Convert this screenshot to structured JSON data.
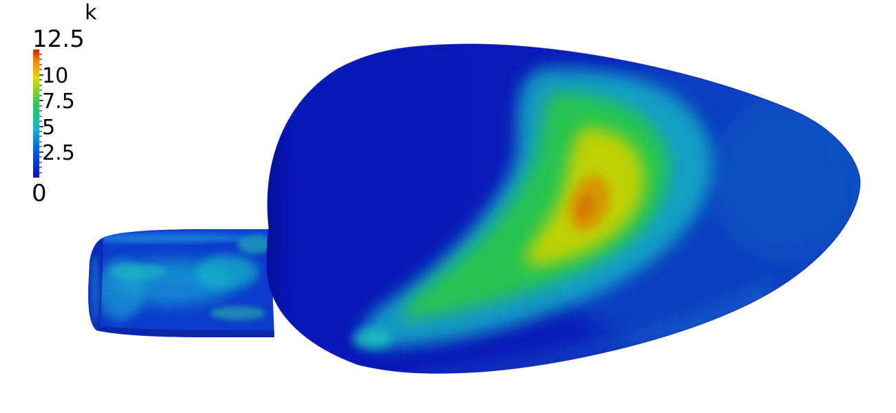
{
  "scalar_bar": {
    "title": "k",
    "max_label": "12.5",
    "min_label": "0",
    "tick_labels": [
      "10",
      "7.5",
      "5",
      "2.5"
    ],
    "colormap_stops": [
      "#0a14b4",
      "#0050e6",
      "#12b4d0",
      "#2cc853",
      "#dcdc00",
      "#ff7800",
      "#d21e00"
    ]
  },
  "surface_colors": {
    "low": "#0c17ba",
    "mid_low": "#14b4c8",
    "mid": "#2ac840",
    "high": "#cdd200",
    "peak": "#d28a00"
  }
}
